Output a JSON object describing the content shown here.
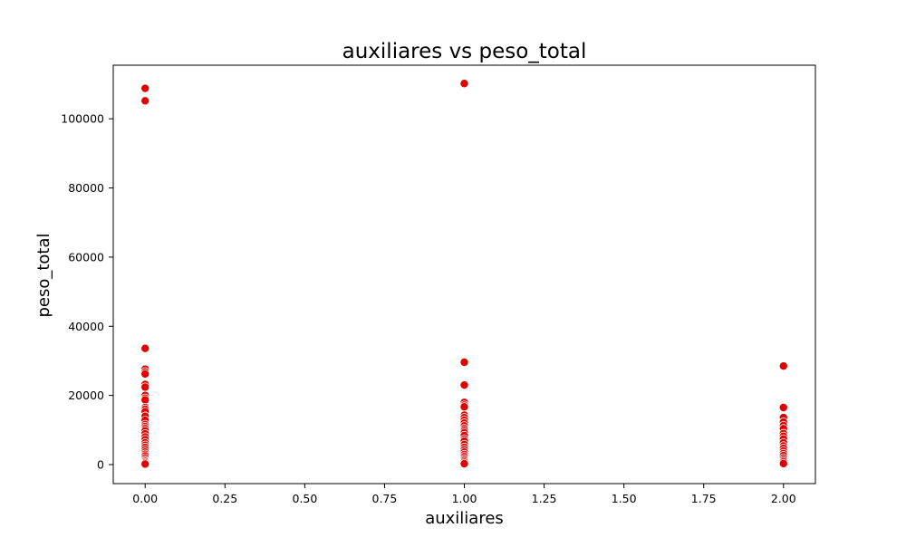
{
  "chart_data": {
    "type": "scatter",
    "title": "auxiliares vs peso_total",
    "xlabel": "auxiliares",
    "ylabel": "peso_total",
    "xlim": [
      -0.1,
      2.1
    ],
    "ylim": [
      -5500,
      115500
    ],
    "xticks": [
      0.0,
      0.25,
      0.5,
      0.75,
      1.0,
      1.25,
      1.5,
      1.75,
      2.0
    ],
    "xtick_labels": [
      "0.00",
      "0.25",
      "0.50",
      "0.75",
      "1.00",
      "1.25",
      "1.50",
      "1.75",
      "2.00"
    ],
    "yticks": [
      0,
      20000,
      40000,
      60000,
      80000,
      100000
    ],
    "ytick_labels": [
      "0",
      "20000",
      "40000",
      "60000",
      "80000",
      "100000"
    ],
    "grid": false,
    "marker_color": "#e00000",
    "marker_edge_color": "#ffffff",
    "points": [
      {
        "x": 0,
        "y": 108800
      },
      {
        "x": 0,
        "y": 105200
      },
      {
        "x": 0,
        "y": 33600
      },
      {
        "x": 0,
        "y": 27600
      },
      {
        "x": 0,
        "y": 26800
      },
      {
        "x": 0,
        "y": 26200
      },
      {
        "x": 0,
        "y": 23200
      },
      {
        "x": 0,
        "y": 22400
      },
      {
        "x": 0,
        "y": 20000
      },
      {
        "x": 0,
        "y": 19200
      },
      {
        "x": 0,
        "y": 18700
      },
      {
        "x": 0,
        "y": 16500
      },
      {
        "x": 0,
        "y": 16000
      },
      {
        "x": 0,
        "y": 15300
      },
      {
        "x": 0,
        "y": 14000
      },
      {
        "x": 0,
        "y": 12800
      },
      {
        "x": 0,
        "y": 11600
      },
      {
        "x": 0,
        "y": 11000
      },
      {
        "x": 0,
        "y": 10400
      },
      {
        "x": 0,
        "y": 9800
      },
      {
        "x": 0,
        "y": 8900
      },
      {
        "x": 0,
        "y": 8000
      },
      {
        "x": 0,
        "y": 7200
      },
      {
        "x": 0,
        "y": 6300
      },
      {
        "x": 0,
        "y": 5600
      },
      {
        "x": 0,
        "y": 5000
      },
      {
        "x": 0,
        "y": 4300
      },
      {
        "x": 0,
        "y": 3600
      },
      {
        "x": 0,
        "y": 3000
      },
      {
        "x": 0,
        "y": 2500
      },
      {
        "x": 0,
        "y": 1900
      },
      {
        "x": 0,
        "y": 1300
      },
      {
        "x": 0,
        "y": 900
      },
      {
        "x": 0,
        "y": 500
      },
      {
        "x": 0,
        "y": 150
      },
      {
        "x": 1,
        "y": 110200
      },
      {
        "x": 1,
        "y": 29600
      },
      {
        "x": 1,
        "y": 23000
      },
      {
        "x": 1,
        "y": 18000
      },
      {
        "x": 1,
        "y": 17200
      },
      {
        "x": 1,
        "y": 16700
      },
      {
        "x": 1,
        "y": 14300
      },
      {
        "x": 1,
        "y": 13600
      },
      {
        "x": 1,
        "y": 12800
      },
      {
        "x": 1,
        "y": 12000
      },
      {
        "x": 1,
        "y": 11200
      },
      {
        "x": 1,
        "y": 10400
      },
      {
        "x": 1,
        "y": 9800
      },
      {
        "x": 1,
        "y": 9200
      },
      {
        "x": 1,
        "y": 8400
      },
      {
        "x": 1,
        "y": 7400
      },
      {
        "x": 1,
        "y": 6800
      },
      {
        "x": 1,
        "y": 5800
      },
      {
        "x": 1,
        "y": 5000
      },
      {
        "x": 1,
        "y": 4300
      },
      {
        "x": 1,
        "y": 3600
      },
      {
        "x": 1,
        "y": 2900
      },
      {
        "x": 1,
        "y": 2300
      },
      {
        "x": 1,
        "y": 1700
      },
      {
        "x": 1,
        "y": 1200
      },
      {
        "x": 1,
        "y": 700
      },
      {
        "x": 1,
        "y": 250
      },
      {
        "x": 2,
        "y": 28500
      },
      {
        "x": 2,
        "y": 16500
      },
      {
        "x": 2,
        "y": 13600
      },
      {
        "x": 2,
        "y": 12300
      },
      {
        "x": 2,
        "y": 11300
      },
      {
        "x": 2,
        "y": 10400
      },
      {
        "x": 2,
        "y": 9000
      },
      {
        "x": 2,
        "y": 8200
      },
      {
        "x": 2,
        "y": 7400
      },
      {
        "x": 2,
        "y": 6300
      },
      {
        "x": 2,
        "y": 5400
      },
      {
        "x": 2,
        "y": 4700
      },
      {
        "x": 2,
        "y": 3900
      },
      {
        "x": 2,
        "y": 3200
      },
      {
        "x": 2,
        "y": 2600
      },
      {
        "x": 2,
        "y": 1900
      },
      {
        "x": 2,
        "y": 1300
      },
      {
        "x": 2,
        "y": 800
      },
      {
        "x": 2,
        "y": 300
      }
    ]
  }
}
